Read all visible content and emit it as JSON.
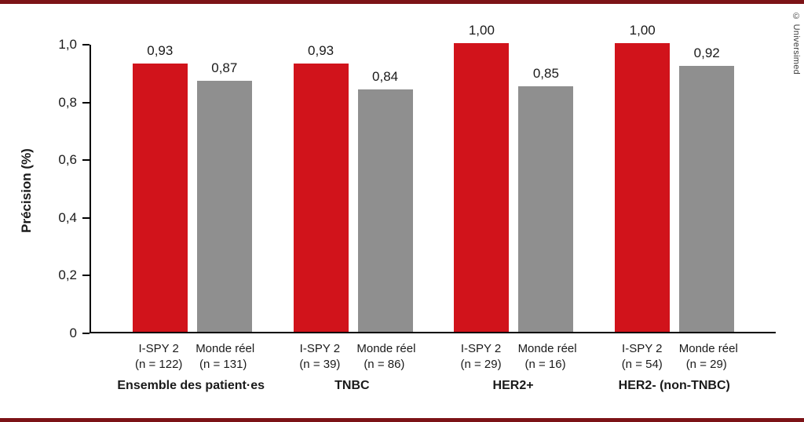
{
  "credit": "© Universimed",
  "colors": {
    "bar_red": "#d1131b",
    "bar_gray": "#8f8f8f",
    "frame": "#7c1317",
    "axis": "#000000"
  },
  "chart_data": {
    "type": "bar",
    "title": "",
    "ylabel": "Précision (%)",
    "ylim": [
      0,
      1.0
    ],
    "grid": false,
    "legend": "none",
    "yticks": [
      {
        "label": "0",
        "value": 0.0
      },
      {
        "label": "0,2",
        "value": 0.2
      },
      {
        "label": "0,4",
        "value": 0.4
      },
      {
        "label": "0,6",
        "value": 0.6
      },
      {
        "label": "0,8",
        "value": 0.8
      },
      {
        "label": "1,0",
        "value": 1.0
      }
    ],
    "series": [
      {
        "name": "I-SPY 2",
        "color": "#d1131b"
      },
      {
        "name": "Monde réel",
        "color": "#8f8f8f"
      }
    ],
    "groups": [
      {
        "label": "Ensemble des patient·es",
        "bars": [
          {
            "series": "I-SPY 2",
            "n": "(n = 122)",
            "value": 0.93,
            "value_label": "0,93"
          },
          {
            "series": "Monde réel",
            "n": "(n = 131)",
            "value": 0.87,
            "value_label": "0,87"
          }
        ]
      },
      {
        "label": "TNBC",
        "bars": [
          {
            "series": "I-SPY 2",
            "n": "(n = 39)",
            "value": 0.93,
            "value_label": "0,93"
          },
          {
            "series": "Monde réel",
            "n": "(n = 86)",
            "value": 0.84,
            "value_label": "0,84"
          }
        ]
      },
      {
        "label": "HER2+",
        "bars": [
          {
            "series": "I-SPY 2",
            "n": "(n = 29)",
            "value": 1.0,
            "value_label": "1,00"
          },
          {
            "series": "Monde réel",
            "n": "(n = 16)",
            "value": 0.85,
            "value_label": "0,85"
          }
        ]
      },
      {
        "label": "HER2- (non-TNBC)",
        "bars": [
          {
            "series": "I-SPY 2",
            "n": "(n = 54)",
            "value": 1.0,
            "value_label": "1,00"
          },
          {
            "series": "Monde réel",
            "n": "(n = 29)",
            "value": 0.92,
            "value_label": "0,92"
          }
        ]
      }
    ]
  }
}
